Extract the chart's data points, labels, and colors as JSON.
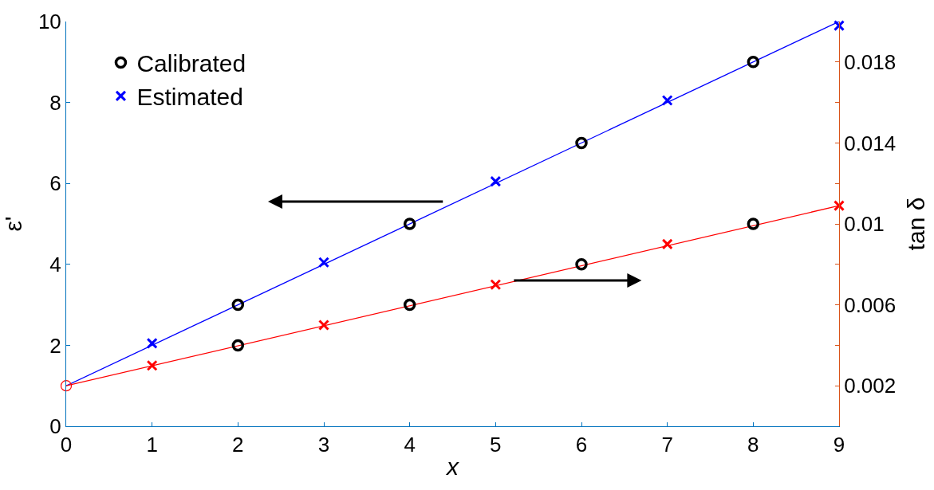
{
  "chart_data": {
    "type": "line",
    "xlabel": "x",
    "ylabel": "ε'",
    "y2label": "tan δ",
    "xlim": [
      0,
      9
    ],
    "xticks": [
      0,
      1,
      2,
      3,
      4,
      5,
      6,
      7,
      8,
      9
    ],
    "ylim": [
      0,
      10
    ],
    "yticks": [
      0,
      2,
      4,
      6,
      8,
      10
    ],
    "y2lim": [
      0,
      0.02
    ],
    "y2ticks": [
      0.002,
      {
        "value": 0.004,
        "label": null
      },
      0.006,
      {
        "value": 0.008,
        "label": null
      },
      0.01,
      {
        "value": 0.012,
        "label": null
      },
      0.014,
      {
        "value": 0.016,
        "label": null
      },
      0.018
    ],
    "legend": "top left",
    "series": [
      {
        "color": "#0000ff",
        "marker": "none",
        "x": [
          0,
          9
        ],
        "values": [
          1,
          10
        ]
      },
      {
        "color": "#ff0000",
        "marker": "none",
        "axis": "y2",
        "x": [
          0,
          9
        ],
        "values": [
          0.002,
          0.0109
        ]
      },
      {
        "type": "scatter",
        "color": "#ff0000",
        "marker": "circle",
        "axis": "y2",
        "x": [
          0
        ],
        "values": [
          0.002
        ]
      },
      {
        "type": "scatter",
        "name": "Calibrated",
        "color": "#000000",
        "marker": "circle",
        "x": [
          2,
          4,
          6,
          8
        ],
        "values": [
          3,
          5,
          7,
          9
        ]
      },
      {
        "type": "scatter",
        "color": "#000000",
        "marker": "circle",
        "axis": "y2",
        "x": [
          2,
          4,
          6,
          8
        ],
        "values": [
          0.004,
          0.006,
          0.008,
          0.01
        ]
      },
      {
        "type": "scatter",
        "name": "Estimated",
        "color": "#0000ff",
        "marker": "cross",
        "x": [
          1,
          3,
          5,
          7,
          9
        ],
        "values": [
          2.05,
          4.05,
          6.05,
          8.05,
          9.9
        ]
      },
      {
        "type": "scatter",
        "color": "#ff0000",
        "marker": "cross",
        "axis": "y2",
        "x": [
          1,
          3,
          5,
          7,
          9
        ],
        "values": [
          0.003,
          0.005,
          0.007,
          0.009,
          0.0109
        ]
      }
    ]
  }
}
